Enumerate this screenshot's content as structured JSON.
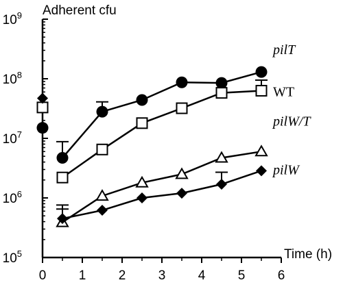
{
  "chart_data": {
    "type": "line",
    "title": "",
    "ylabel": "Adherent cfu",
    "xlabel": "Time (h)",
    "y_scale": "log",
    "ylim": [
      100000,
      1000000000
    ],
    "xlim": [
      0,
      6
    ],
    "x_ticks": [
      "0",
      "1",
      "2",
      "3",
      "4",
      "5",
      "6"
    ],
    "y_ticks": [
      {
        "value": 100000,
        "base": "10",
        "exp": "5"
      },
      {
        "value": 1000000,
        "base": "10",
        "exp": "6"
      },
      {
        "value": 10000000,
        "base": "10",
        "exp": "7"
      },
      {
        "value": 100000000,
        "base": "10",
        "exp": "8"
      },
      {
        "value": 1000000000,
        "base": "10",
        "exp": "9"
      }
    ],
    "grid": false,
    "series": [
      {
        "name": "pilT",
        "marker": "circle-filled",
        "x": [
          0,
          0.5,
          1.5,
          2.5,
          3.5,
          4.5,
          5.5
        ],
        "y": [
          15000000,
          4700000,
          28000000,
          44000000,
          87000000,
          85000000,
          130000000
        ],
        "err_up": [
          null,
          8800000,
          41000000,
          null,
          null,
          null,
          null
        ]
      },
      {
        "name": "WT",
        "marker": "square-open",
        "x": [
          0,
          0.5,
          1.5,
          2.5,
          3.5,
          4.5,
          5.5
        ],
        "y": [
          33000000,
          2200000,
          6500000,
          18000000,
          32000000,
          58000000,
          63000000
        ],
        "err_up": [
          null,
          null,
          null,
          null,
          null,
          null,
          95000000
        ]
      },
      {
        "name": "pilW/T",
        "marker": "triangle-open",
        "x": [
          0.5,
          1.5,
          2.5,
          3.5,
          4.5,
          5.5
        ],
        "y": [
          390000,
          1080000,
          1800000,
          2500000,
          4700000,
          6000000
        ],
        "err_up": [
          760000,
          null,
          null,
          null,
          null,
          null
        ]
      },
      {
        "name": "pilW",
        "marker": "diamond-filled",
        "x": [
          0,
          0.5,
          1.5,
          2.5,
          3.5,
          4.5,
          5.5
        ],
        "y": [
          47000000,
          450000,
          620000,
          1000000,
          1200000,
          1700000,
          2850000
        ],
        "err_up": [
          null,
          650000,
          null,
          null,
          null,
          2700000,
          null
        ]
      }
    ],
    "series_labels_italic": [
      "pilT",
      "pilW/T",
      "pilW"
    ]
  }
}
